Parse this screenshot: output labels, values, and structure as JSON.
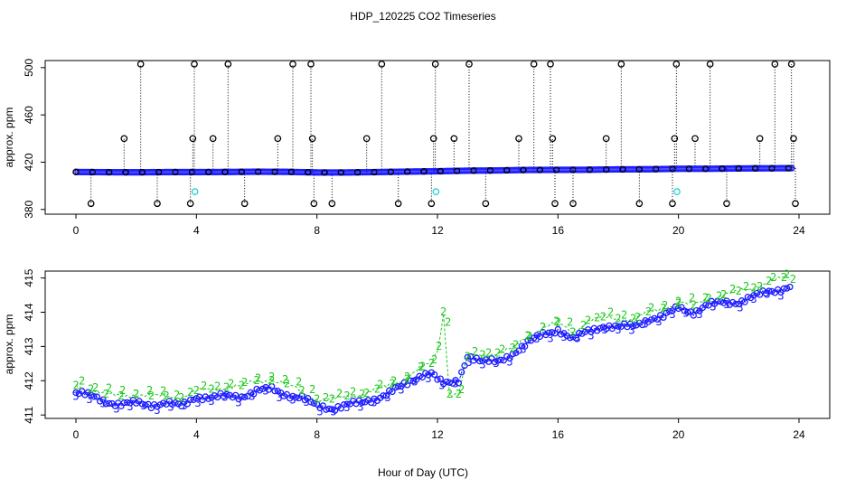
{
  "title": "HDP_120225  CO2 Timeseries",
  "xlabel": "Hour of Day (UTC)",
  "colors": {
    "black": "#000000",
    "blue": "#1c1cff",
    "green": "#1cc81c",
    "cyan": "#22d3d3"
  },
  "chart_data": [
    {
      "type": "scatter",
      "ylabel": "approx. ppm",
      "xlim": [
        0,
        24
      ],
      "ylim": [
        376,
        506
      ],
      "x_ticks": [
        "0",
        "4",
        "8",
        "12",
        "16",
        "20",
        "24"
      ],
      "y_ticks": [
        "380",
        "420",
        "460",
        "500"
      ],
      "series": [
        {
          "marker": "circle",
          "color": "black",
          "baseline": {
            "x": [
              0,
              1,
              2,
              3,
              4,
              5,
              6,
              7,
              8,
              9,
              10,
              11,
              12,
              13,
              14,
              15,
              16,
              17,
              18,
              19,
              20,
              21,
              22,
              23,
              23.8
            ],
            "y": [
              411.7,
              411.5,
              411.4,
              411.6,
              411.6,
              411.7,
              411.9,
              411.8,
              411.3,
              411.3,
              411.6,
              412.0,
              412.3,
              412.8,
              413.0,
              413.4,
              413.5,
              413.6,
              413.9,
              414.0,
              414.4,
              414.4,
              414.7,
              414.8,
              414.9
            ]
          },
          "spikes": [
            {
              "x": 0.5,
              "y": 385
            },
            {
              "x": 1.6,
              "y": 440
            },
            {
              "x": 2.15,
              "y": 503
            },
            {
              "x": 2.7,
              "y": 385
            },
            {
              "x": 3.8,
              "y": 385
            },
            {
              "x": 3.88,
              "y": 440
            },
            {
              "x": 3.93,
              "y": 503
            },
            {
              "x": 4.55,
              "y": 440
            },
            {
              "x": 5.05,
              "y": 503
            },
            {
              "x": 5.6,
              "y": 385
            },
            {
              "x": 6.7,
              "y": 440
            },
            {
              "x": 7.2,
              "y": 503
            },
            {
              "x": 7.8,
              "y": 503
            },
            {
              "x": 7.85,
              "y": 440
            },
            {
              "x": 7.9,
              "y": 385
            },
            {
              "x": 8.5,
              "y": 385
            },
            {
              "x": 9.65,
              "y": 440
            },
            {
              "x": 10.15,
              "y": 503
            },
            {
              "x": 10.7,
              "y": 385
            },
            {
              "x": 11.8,
              "y": 385
            },
            {
              "x": 11.87,
              "y": 440
            },
            {
              "x": 11.93,
              "y": 503
            },
            {
              "x": 12.55,
              "y": 440
            },
            {
              "x": 13.05,
              "y": 503
            },
            {
              "x": 13.6,
              "y": 385
            },
            {
              "x": 14.7,
              "y": 440
            },
            {
              "x": 15.2,
              "y": 503
            },
            {
              "x": 15.75,
              "y": 503
            },
            {
              "x": 15.82,
              "y": 440
            },
            {
              "x": 15.9,
              "y": 385
            },
            {
              "x": 16.5,
              "y": 385
            },
            {
              "x": 17.6,
              "y": 440
            },
            {
              "x": 18.1,
              "y": 503
            },
            {
              "x": 18.7,
              "y": 385
            },
            {
              "x": 19.8,
              "y": 385
            },
            {
              "x": 19.87,
              "y": 440
            },
            {
              "x": 19.93,
              "y": 503
            },
            {
              "x": 20.55,
              "y": 440
            },
            {
              "x": 21.05,
              "y": 503
            },
            {
              "x": 21.6,
              "y": 385
            },
            {
              "x": 22.7,
              "y": 440
            },
            {
              "x": 23.2,
              "y": 503
            },
            {
              "x": 23.75,
              "y": 503
            },
            {
              "x": 23.82,
              "y": 440
            },
            {
              "x": 23.88,
              "y": 385
            }
          ]
        },
        {
          "marker": "circle",
          "color": "blue",
          "x": [
            0,
            1,
            2,
            3,
            4,
            5,
            6,
            7,
            8,
            9,
            10,
            11,
            12,
            13,
            14,
            15,
            16,
            17,
            18,
            19,
            20,
            21,
            22,
            23,
            23.8
          ],
          "y": [
            411.7,
            411.5,
            411.4,
            411.6,
            411.6,
            411.7,
            411.9,
            411.8,
            411.3,
            411.3,
            411.6,
            412.0,
            412.3,
            412.8,
            413.0,
            413.4,
            413.5,
            413.6,
            413.9,
            414.0,
            414.4,
            414.4,
            414.7,
            414.8,
            414.9
          ]
        },
        {
          "marker": "circle",
          "color": "cyan",
          "x": [
            3.95,
            11.95,
            19.95
          ],
          "y": [
            395,
            395,
            395
          ]
        }
      ]
    },
    {
      "type": "scatter",
      "ylabel": "approx. ppm",
      "xlim": [
        0,
        24
      ],
      "ylim": [
        410.9,
        415.2
      ],
      "x_ticks": [
        "0",
        "4",
        "8",
        "12",
        "16",
        "20",
        "24"
      ],
      "y_ticks": [
        "411",
        "412",
        "413",
        "414",
        "415"
      ],
      "series": [
        {
          "marker": "2",
          "color": "green",
          "x": [
            0,
            0.5,
            1,
            1.5,
            2,
            2.5,
            3,
            3.5,
            4,
            4.5,
            5,
            5.5,
            6,
            6.5,
            7,
            7.5,
            8,
            8.5,
            9,
            9.5,
            10,
            10.5,
            11,
            11.5,
            11.8,
            12.05,
            12.2,
            12.4,
            12.7,
            13,
            13.5,
            14,
            14.5,
            15,
            15.5,
            16,
            16.5,
            17,
            17.5,
            18,
            18.5,
            19,
            19.5,
            20,
            20.5,
            21,
            21.5,
            22,
            22.5,
            23,
            23.5,
            23.8
          ],
          "y": [
            411.85,
            411.75,
            411.6,
            411.55,
            411.6,
            411.55,
            411.55,
            411.5,
            411.7,
            411.75,
            411.8,
            411.85,
            412.0,
            412.0,
            411.9,
            411.7,
            411.45,
            411.45,
            411.55,
            411.6,
            411.75,
            411.9,
            412.1,
            412.4,
            412.5,
            413.0,
            414.0,
            411.6,
            411.6,
            412.7,
            412.75,
            412.8,
            412.95,
            413.3,
            413.55,
            413.7,
            413.4,
            413.75,
            413.85,
            413.8,
            413.8,
            414.0,
            414.1,
            414.3,
            414.2,
            414.4,
            414.5,
            414.6,
            414.7,
            414.9,
            415.0,
            414.95
          ]
        },
        {
          "marker": "3",
          "color": "blue",
          "x": [
            0,
            0.5,
            1,
            1.5,
            2,
            2.5,
            3,
            3.5,
            4,
            4.5,
            5,
            5.5,
            6,
            6.5,
            7,
            7.5,
            8,
            8.5,
            9,
            9.5,
            10,
            10.5,
            11,
            11.5,
            11.8,
            12.05,
            12.2,
            12.4,
            12.7,
            13,
            13.5,
            14,
            14.5,
            15,
            15.5,
            16,
            16.5,
            17,
            17.5,
            18,
            18.5,
            19,
            19.5,
            20,
            20.5,
            21,
            21.5,
            22,
            22.5,
            23,
            23.5,
            23.8
          ],
          "y": [
            411.65,
            411.55,
            411.4,
            411.3,
            411.35,
            411.3,
            411.35,
            411.25,
            411.55,
            411.5,
            411.55,
            411.55,
            411.7,
            411.75,
            411.6,
            411.5,
            411.25,
            411.2,
            411.3,
            411.35,
            411.5,
            411.7,
            411.9,
            412.2,
            412.25,
            412.0,
            411.9,
            411.9,
            412.0,
            412.75,
            412.55,
            412.55,
            412.8,
            413.1,
            413.35,
            413.5,
            413.2,
            413.45,
            413.6,
            413.55,
            413.6,
            413.8,
            413.85,
            414.15,
            414.0,
            414.2,
            414.3,
            414.3,
            414.45,
            414.6,
            414.7,
            414.8
          ]
        }
      ]
    }
  ]
}
